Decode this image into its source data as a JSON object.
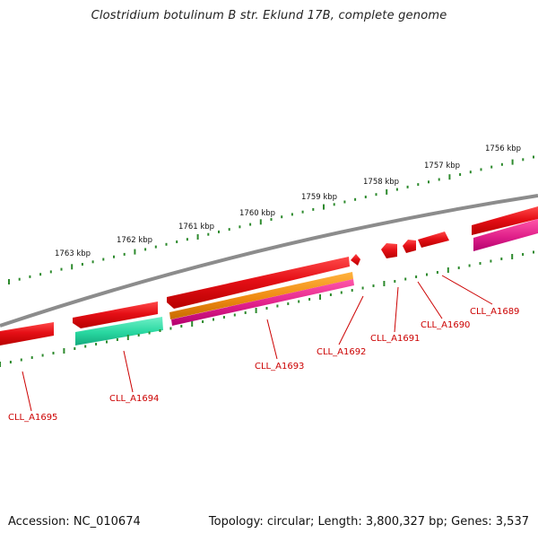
{
  "title": "Clostridium botulinum B str. Eklund 17B, complete genome",
  "footer": {
    "accession": "Accession: NC_010674",
    "summary": "Topology: circular; Length: 3,800,327 bp; Genes: 3,537"
  },
  "scale_labels": [
    "1756 kbp",
    "1757 kbp",
    "1758 kbp",
    "1759 kbp",
    "1760 kbp",
    "1761 kbp",
    "1762 kbp",
    "1763 kbp"
  ],
  "gene_labels": [
    "CLL_A1689",
    "CLL_A1690",
    "CLL_A1691",
    "CLL_A1692",
    "CLL_A1693",
    "CLL_A1694",
    "CLL_A1695"
  ],
  "colors": {
    "backbone": "#8c8c8c",
    "tick": "#2d8a2d",
    "gene_red": "#e0101a",
    "gene_orange": "#ef8a12",
    "gene_pink": "#e0208a",
    "gene_green": "#28d7a0",
    "label_red": "#cc0000"
  }
}
